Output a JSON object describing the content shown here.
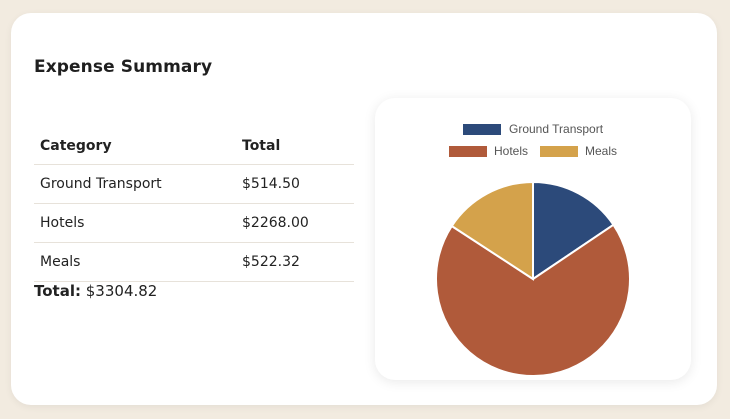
{
  "title": "Expense Summary",
  "table": {
    "headers": [
      "Category",
      "Total"
    ],
    "rows": [
      {
        "category": "Ground Transport",
        "total": "$514.50"
      },
      {
        "category": "Hotels",
        "total": "$2268.00"
      },
      {
        "category": "Meals",
        "total": "$522.32"
      }
    ]
  },
  "summary": {
    "label": "Total:",
    "value": "$3304.82"
  },
  "chart_data": {
    "type": "pie",
    "title": "",
    "categories": [
      "Ground Transport",
      "Hotels",
      "Meals"
    ],
    "values": [
      514.5,
      2268.0,
      522.32
    ],
    "colors": [
      "#2c4a7a",
      "#b05a3a",
      "#d4a24b"
    ],
    "legend": "top"
  }
}
